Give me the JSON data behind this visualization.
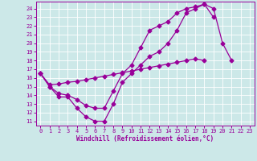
{
  "xlabel": "Windchill (Refroidissement éolien,°C)",
  "xlim": [
    -0.5,
    23.5
  ],
  "ylim": [
    10.5,
    24.8
  ],
  "yticks": [
    11,
    12,
    13,
    14,
    15,
    16,
    17,
    18,
    19,
    20,
    21,
    22,
    23,
    24
  ],
  "xticks": [
    0,
    1,
    2,
    3,
    4,
    5,
    6,
    7,
    8,
    9,
    10,
    11,
    12,
    13,
    14,
    15,
    16,
    17,
    18,
    19,
    20,
    21,
    22,
    23
  ],
  "bg_color": "#cce8e8",
  "line_color": "#990099",
  "line1_x": [
    0,
    1,
    2,
    3,
    4,
    5,
    6,
    7,
    8,
    9,
    10,
    11,
    12,
    13,
    14,
    15,
    16,
    17,
    18,
    19,
    20,
    21
  ],
  "line1_y": [
    16.5,
    15.0,
    13.8,
    13.8,
    12.5,
    11.5,
    11.0,
    11.0,
    13.0,
    15.5,
    16.5,
    17.5,
    18.5,
    19.0,
    20.0,
    21.5,
    23.5,
    24.0,
    24.5,
    24.0,
    20.0,
    18.0
  ],
  "line2_x": [
    0,
    1,
    2,
    3,
    4,
    5,
    6,
    7,
    8,
    9,
    10,
    11,
    12,
    13,
    14,
    15,
    16,
    17,
    18,
    19
  ],
  "line2_y": [
    16.5,
    15.0,
    14.2,
    14.0,
    13.5,
    12.8,
    12.5,
    12.5,
    14.5,
    16.5,
    17.5,
    19.5,
    21.5,
    22.0,
    22.5,
    23.5,
    24.0,
    24.2,
    24.5,
    23.0
  ],
  "line3_x": [
    0,
    1,
    2,
    3,
    4,
    5,
    6,
    7,
    8,
    9,
    10,
    11,
    12,
    13,
    14,
    15,
    16,
    17,
    18
  ],
  "line3_y": [
    16.5,
    15.2,
    15.3,
    15.5,
    15.6,
    15.8,
    16.0,
    16.2,
    16.4,
    16.6,
    16.8,
    17.0,
    17.2,
    17.4,
    17.6,
    17.8,
    18.0,
    18.2,
    18.0
  ],
  "tick_fontsize": 5.0,
  "xlabel_fontsize": 5.5,
  "marker_size": 2.5,
  "linewidth": 0.9
}
